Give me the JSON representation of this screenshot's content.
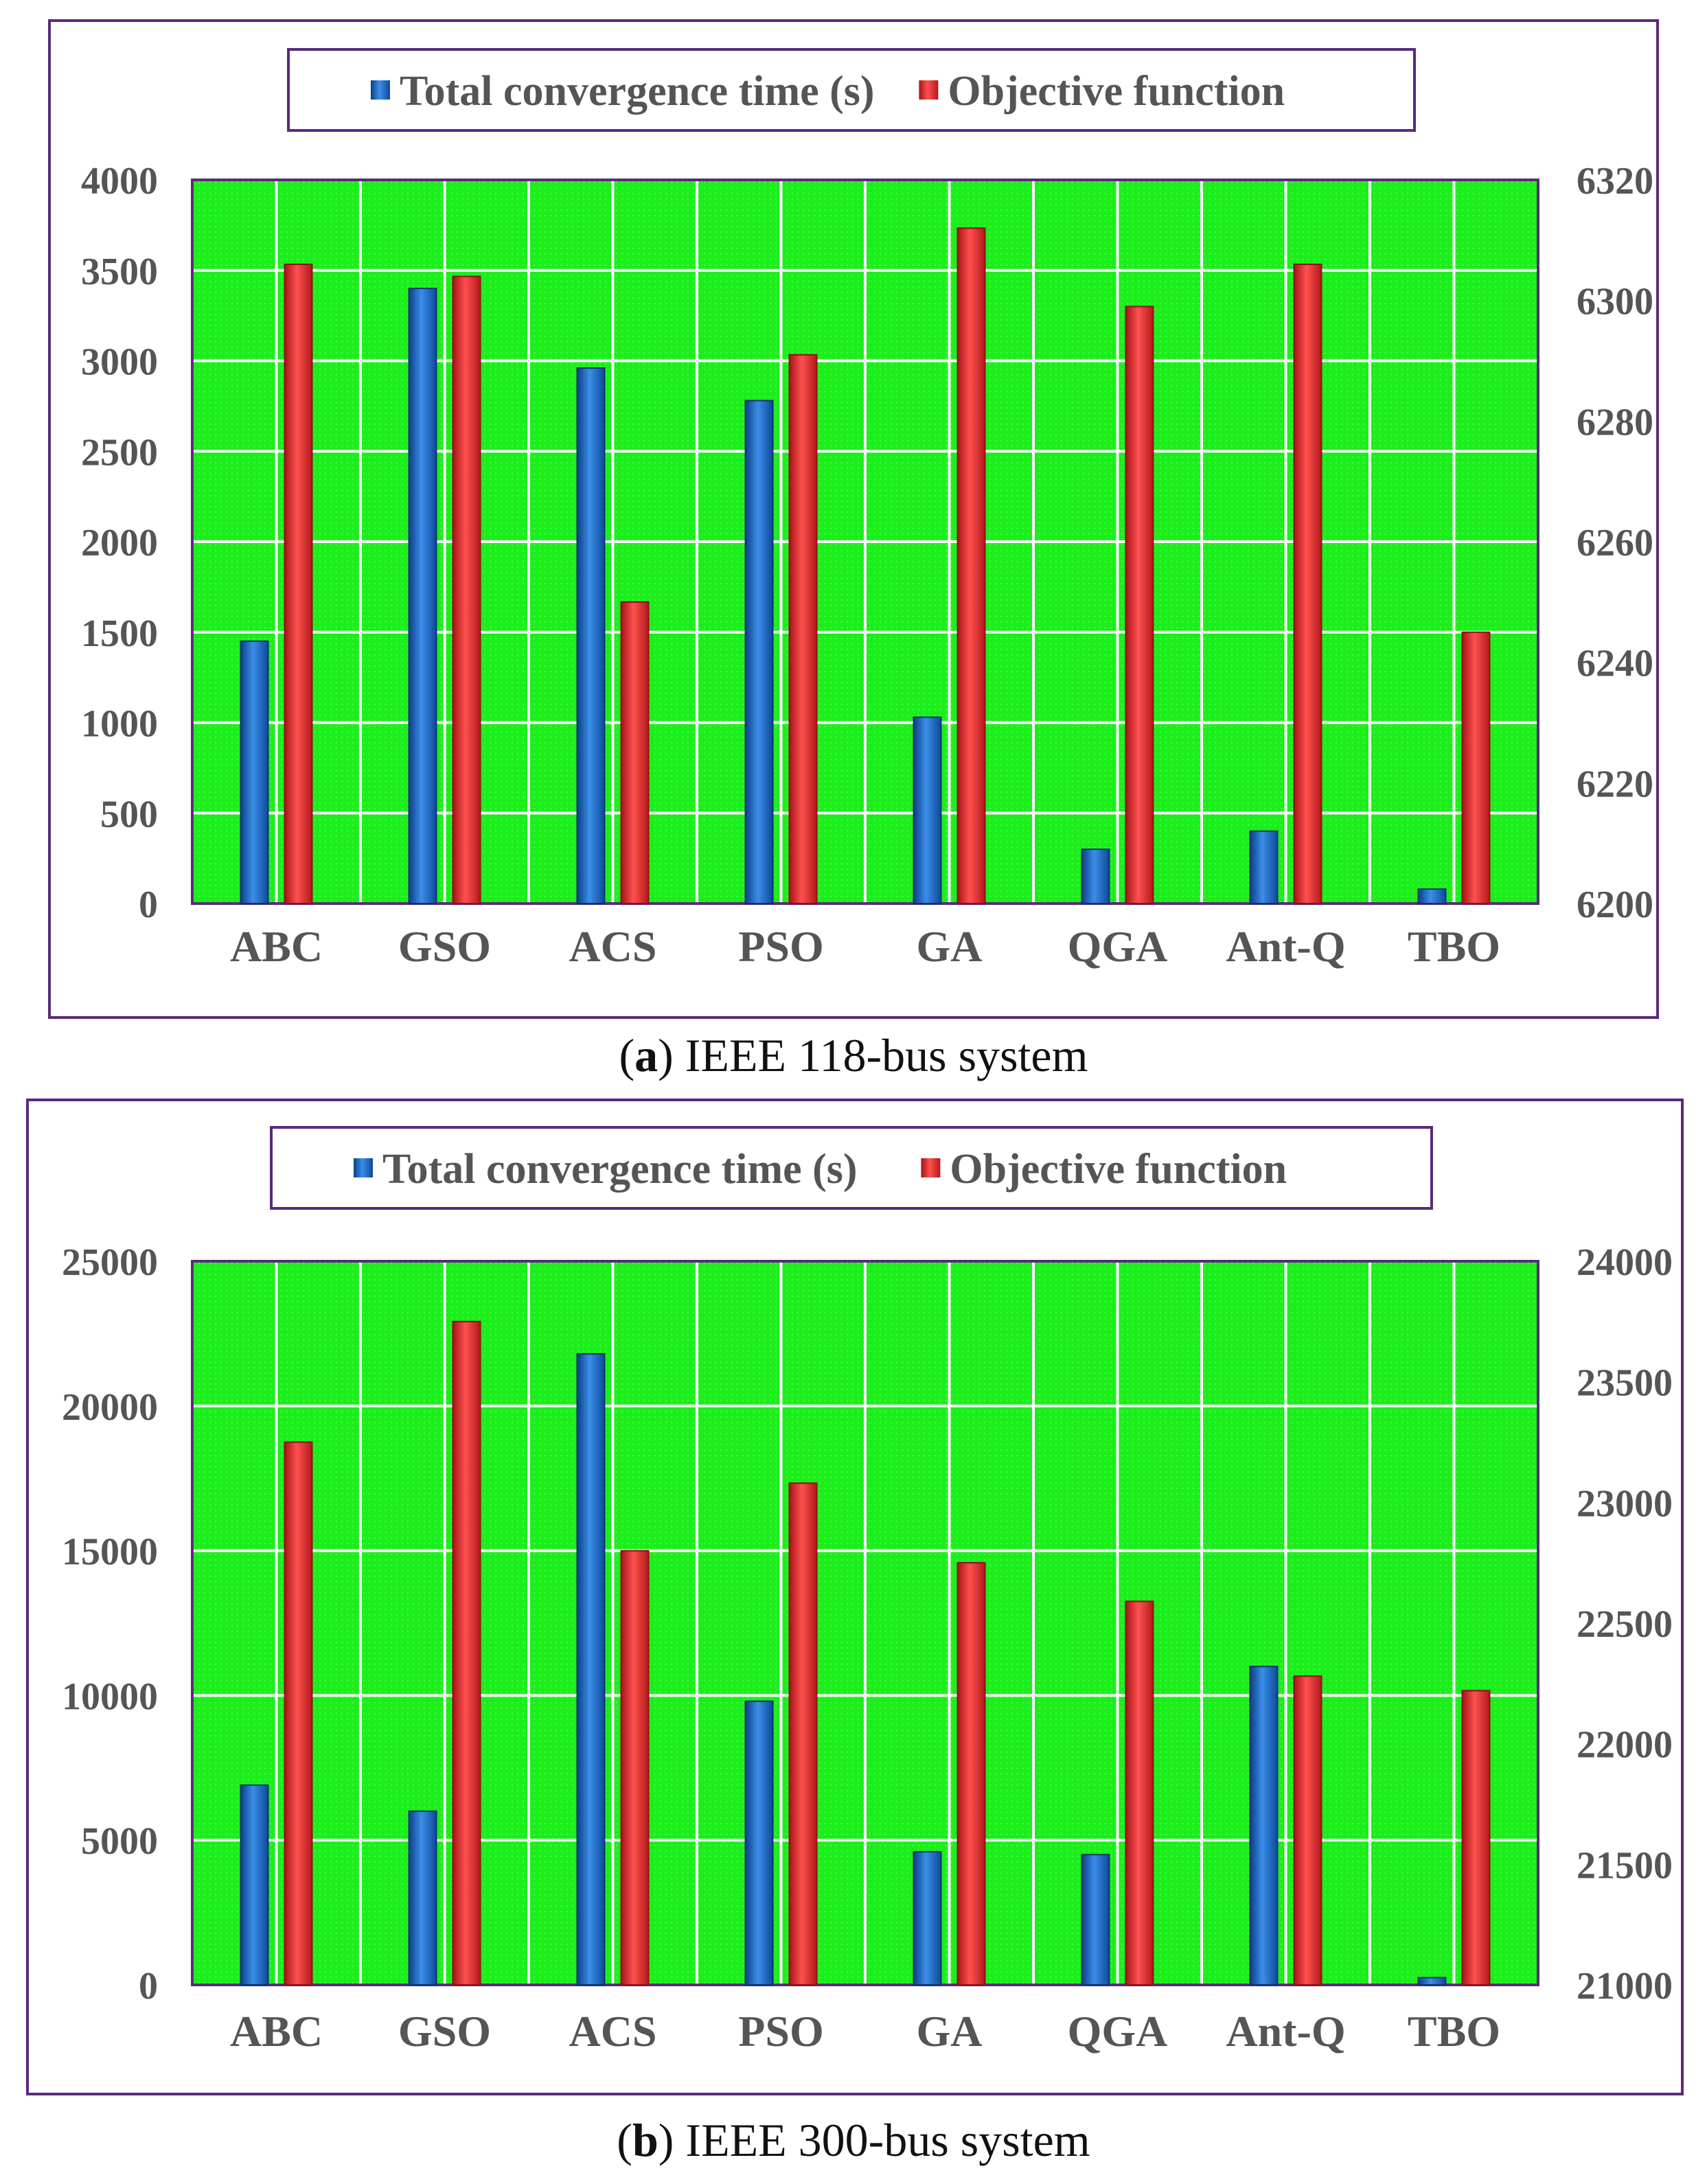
{
  "colors": {
    "plot_bg": "#1cee1c",
    "frame": "#5a2a7a",
    "blue": "#1f6fd0",
    "red": "#e8282a",
    "grid": "#ffffff",
    "text": "#555555"
  },
  "chart_data": [
    {
      "type": "bar",
      "caption_letter": "a",
      "caption_rest": ") IEEE 118-bus system",
      "caption_open": "(",
      "categories": [
        "ABC",
        "GSO",
        "ACS",
        "PSO",
        "GA",
        "QGA",
        "Ant-Q",
        "TBO"
      ],
      "series": [
        {
          "name": "Total convergence time (s)",
          "axis": "left",
          "color": "#1f6fd0",
          "values": [
            1450,
            3400,
            2960,
            2780,
            1030,
            300,
            400,
            80
          ]
        },
        {
          "name": "Objective function",
          "axis": "right",
          "color": "#e8282a",
          "values": [
            6306,
            6304,
            6250,
            6291,
            6312,
            6299,
            6306,
            6245
          ]
        }
      ],
      "left_axis": {
        "min": 0,
        "max": 4000,
        "ticks": [
          "0",
          "500",
          "1000",
          "1500",
          "2000",
          "2500",
          "3000",
          "3500",
          "4000"
        ]
      },
      "right_axis": {
        "min": 6200,
        "max": 6320,
        "ticks": [
          "6200",
          "6220",
          "6240",
          "6260",
          "6280",
          "6300",
          "6320"
        ]
      },
      "grid": true,
      "legend_position": "top-center"
    },
    {
      "type": "bar",
      "caption_letter": "b",
      "caption_rest": ") IEEE 300-bus system",
      "caption_open": "(",
      "categories": [
        "ABC",
        "GSO",
        "ACS",
        "PSO",
        "GA",
        "QGA",
        "Ant-Q",
        "TBO"
      ],
      "series": [
        {
          "name": "Total convergence time (s)",
          "axis": "left",
          "color": "#1f6fd0",
          "values": [
            6900,
            6000,
            21800,
            9800,
            4600,
            4500,
            11000,
            250
          ]
        },
        {
          "name": "Objective function",
          "axis": "right",
          "color": "#e8282a",
          "values": [
            23250,
            23750,
            22800,
            23080,
            22750,
            22590,
            22280,
            22220
          ]
        }
      ],
      "left_axis": {
        "min": 0,
        "max": 25000,
        "ticks": [
          "0",
          "5000",
          "10000",
          "15000",
          "20000",
          "25000"
        ]
      },
      "right_axis": {
        "min": 21000,
        "max": 24000,
        "ticks": [
          "21000",
          "21500",
          "22000",
          "22500",
          "23000",
          "23500",
          "24000"
        ]
      },
      "grid": true,
      "legend_position": "top-center"
    }
  ]
}
